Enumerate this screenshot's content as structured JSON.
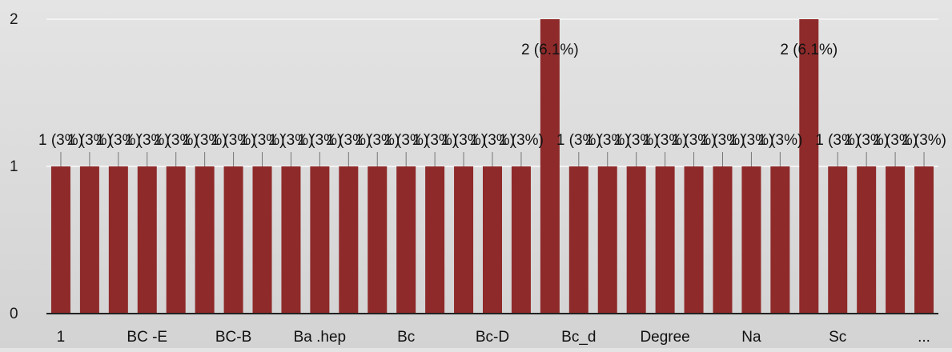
{
  "chart_data": {
    "type": "bar",
    "title": "",
    "xlabel": "",
    "ylabel": "",
    "ylim": [
      0,
      2
    ],
    "y_ticks": [
      0,
      1,
      2
    ],
    "grid": true,
    "bar_color": "#8f2a2a",
    "gridline_color": "#f2f2f2",
    "values": [
      1,
      1,
      1,
      1,
      1,
      1,
      1,
      1,
      1,
      1,
      1,
      1,
      1,
      1,
      1,
      1,
      1,
      2,
      1,
      1,
      1,
      1,
      1,
      1,
      1,
      1,
      2,
      1,
      1,
      1,
      1
    ],
    "data_labels": [
      "1 (3%)",
      "1 (3%)",
      "1 (3%)",
      "1 (3%)",
      "1 (3%)",
      "1 (3%)",
      "1 (3%)",
      "1 (3%)",
      "1 (3%)",
      "1 (3%)",
      "1 (3%)",
      "1 (3%)",
      "1 (3%)",
      "1 (3%)",
      "1 (3%)",
      "1 (3%)",
      "1 (3%)",
      "2 (6.1%)",
      "1 (3%)",
      "1 (3%)",
      "1 (3%)",
      "1 (3%)",
      "1 (3%)",
      "1 (3%)",
      "1 (3%)",
      "1 (3%)",
      "2 (6.1%)",
      "1 (3%)",
      "1 (3%)",
      "1 (3%)",
      "1 (3%)"
    ],
    "visible_x_labels": [
      {
        "bar_index": 0,
        "label": "1"
      },
      {
        "bar_index": 3,
        "label": "BC -E"
      },
      {
        "bar_index": 6,
        "label": "BC-B"
      },
      {
        "bar_index": 9,
        "label": "Ba .hep"
      },
      {
        "bar_index": 12,
        "label": "Bc"
      },
      {
        "bar_index": 15,
        "label": "Bc-D"
      },
      {
        "bar_index": 18,
        "label": "Bc_d"
      },
      {
        "bar_index": 21,
        "label": "Degree"
      },
      {
        "bar_index": 24,
        "label": "Na"
      },
      {
        "bar_index": 27,
        "label": "Sc"
      },
      {
        "bar_index": 30,
        "label": "..."
      }
    ]
  }
}
